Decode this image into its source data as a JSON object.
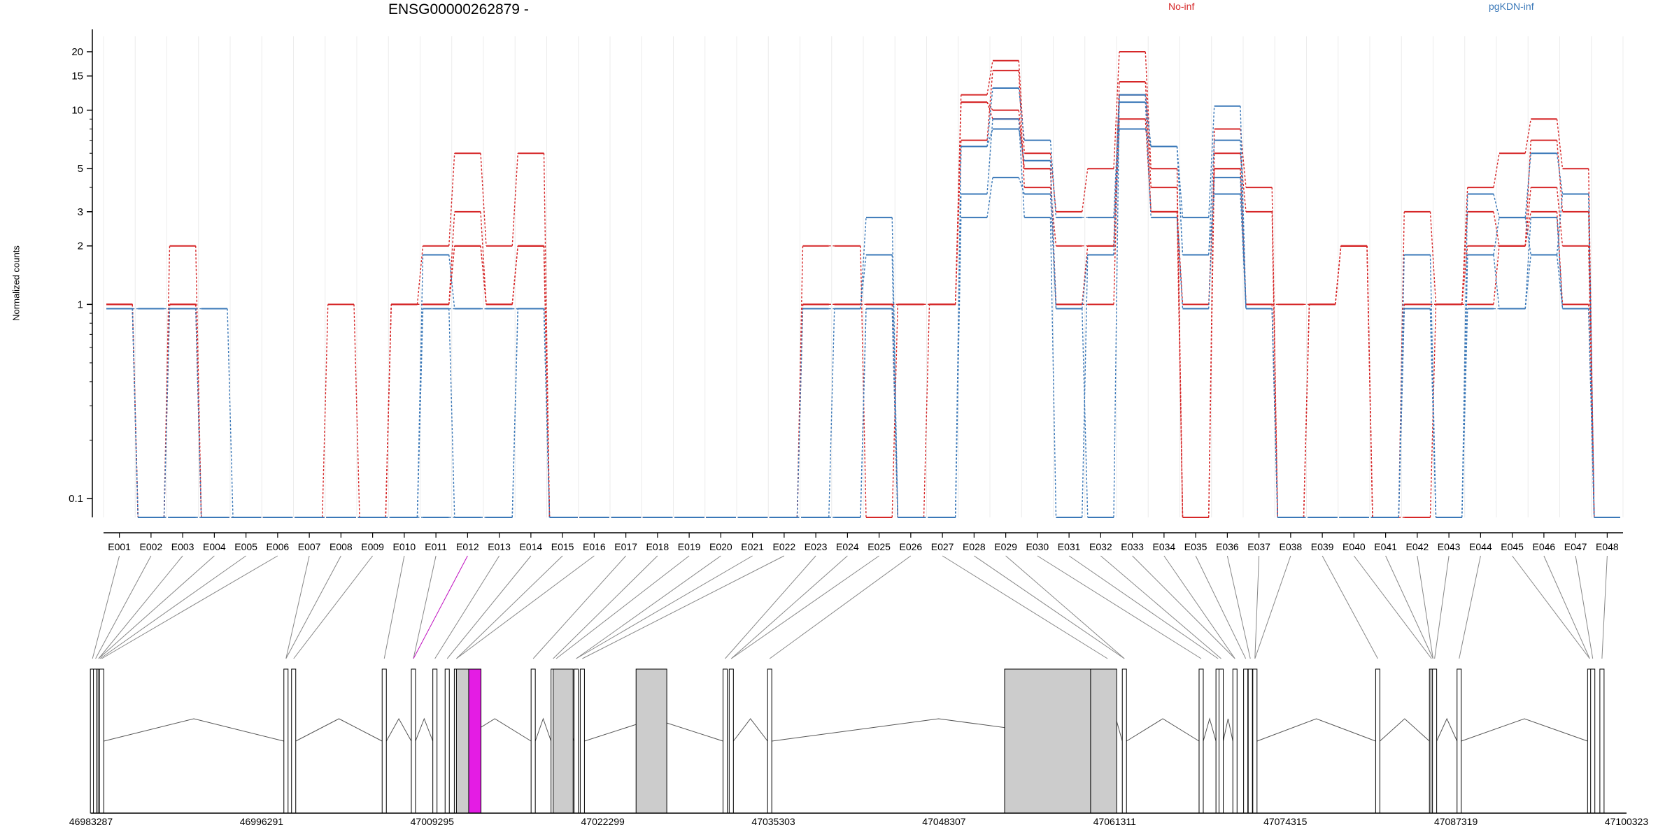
{
  "header": {
    "title": "ENSG00000262879 -",
    "legend": [
      {
        "label": "No-inf",
        "color": "#d62728"
      },
      {
        "label": "pgKDN-inf",
        "color": "#3a78b8"
      }
    ]
  },
  "chart_data": {
    "type": "line",
    "ylabel": "Normalized counts",
    "yscale": "log",
    "ylim": [
      0.08,
      24
    ],
    "yticks": [
      {
        "v": 0.1,
        "l": "0.1"
      },
      {
        "v": 1,
        "l": "1"
      },
      {
        "v": 2,
        "l": "2"
      },
      {
        "v": 3,
        "l": "3"
      },
      {
        "v": 5,
        "l": "5"
      },
      {
        "v": 10,
        "l": "10"
      },
      {
        "v": 15,
        "l": "15"
      },
      {
        "v": 20,
        "l": "20"
      }
    ],
    "grid": "vertical",
    "categories": [
      "E001",
      "E002",
      "E003",
      "E004",
      "E005",
      "E006",
      "E007",
      "E008",
      "E009",
      "E010",
      "E011",
      "E012",
      "E013",
      "E014",
      "E015",
      "E016",
      "E017",
      "E018",
      "E019",
      "E020",
      "E021",
      "E022",
      "E023",
      "E024",
      "E025",
      "E026",
      "E027",
      "E028",
      "E029",
      "E030",
      "E031",
      "E032",
      "E033",
      "E034",
      "E035",
      "E036",
      "E037",
      "E038",
      "E039",
      "E040",
      "E041",
      "E042",
      "E043",
      "E044",
      "E045",
      "E046",
      "E047",
      "E048"
    ],
    "highlight_category": "E012",
    "series": [
      {
        "group": "No-inf",
        "color": "#d62728",
        "values": [
          1,
          0.08,
          1,
          0.08,
          0.08,
          0.08,
          0.08,
          1,
          0.08,
          1,
          1,
          2,
          1,
          2,
          0.08,
          0.08,
          0.08,
          0.08,
          0.08,
          0.08,
          0.08,
          0.08,
          1,
          1,
          1,
          1,
          1,
          11,
          9,
          5,
          1,
          2,
          9,
          3,
          1,
          5,
          1,
          1,
          1,
          2,
          0.08,
          1,
          1,
          2,
          2,
          3,
          1,
          0.08
        ]
      },
      {
        "group": "No-inf",
        "color": "#d62728",
        "values": [
          1,
          0.08,
          2,
          0.08,
          0.08,
          0.08,
          0.08,
          0.08,
          0.08,
          1,
          2,
          6,
          2,
          6,
          0.08,
          0.08,
          0.08,
          0.08,
          0.08,
          0.08,
          0.08,
          0.08,
          2,
          2,
          0.08,
          1,
          1,
          12,
          18,
          6,
          3,
          5,
          20,
          5,
          0.08,
          8,
          4,
          0.08,
          1,
          2,
          0.08,
          3,
          1,
          4,
          6,
          9,
          5,
          0.08
        ]
      },
      {
        "group": "No-inf",
        "color": "#d62728",
        "values": [
          1,
          0.08,
          1,
          0.08,
          0.08,
          0.08,
          0.08,
          0.08,
          0.08,
          1,
          1,
          3,
          1,
          2,
          0.08,
          0.08,
          0.08,
          0.08,
          0.08,
          0.08,
          0.08,
          0.08,
          1,
          1,
          1,
          0.08,
          1,
          7,
          16,
          4,
          2,
          2,
          14,
          4,
          0.08,
          6,
          3,
          0.08,
          1,
          2,
          0.08,
          0.08,
          1,
          3,
          2,
          7,
          3,
          0.08
        ]
      },
      {
        "group": "No-inf",
        "color": "#d62728",
        "values": [
          1,
          0.08,
          1,
          0.08,
          0.08,
          0.08,
          0.08,
          0.08,
          0.08,
          1,
          1,
          2,
          1,
          2,
          0.08,
          0.08,
          0.08,
          0.08,
          0.08,
          0.08,
          0.08,
          0.08,
          1,
          1,
          1,
          1,
          1,
          11,
          10,
          5,
          1,
          1,
          12,
          3,
          0.08,
          5,
          1,
          0.08,
          1,
          2,
          0.08,
          1,
          1,
          1,
          2,
          4,
          2,
          0.08
        ]
      },
      {
        "group": "pgKDN-inf",
        "color": "#3a78b8",
        "values": [
          0.95,
          0.95,
          0.95,
          0.95,
          0.08,
          0.08,
          0.08,
          0.08,
          0.08,
          0.08,
          1.8,
          0.95,
          0.95,
          0.95,
          0.08,
          0.08,
          0.08,
          0.08,
          0.08,
          0.08,
          0.08,
          0.08,
          0.08,
          0.95,
          2.8,
          0.08,
          0.08,
          6.5,
          13,
          7,
          2.8,
          2.8,
          12,
          6.5,
          2.8,
          10.5,
          0.95,
          0.08,
          0.08,
          0.08,
          0.08,
          1.8,
          0.08,
          3.7,
          2.8,
          6,
          3.7,
          0.08
        ]
      },
      {
        "group": "pgKDN-inf",
        "color": "#3a78b8",
        "values": [
          0.95,
          0.08,
          0.08,
          0.08,
          0.08,
          0.08,
          0.08,
          0.08,
          0.08,
          0.08,
          0.95,
          0.08,
          0.08,
          0.95,
          0.08,
          0.08,
          0.08,
          0.08,
          0.08,
          0.08,
          0.08,
          0.08,
          0.08,
          0.08,
          0.95,
          0.08,
          0.08,
          3.7,
          9,
          2.8,
          0.08,
          1.8,
          8,
          6.5,
          1.8,
          7,
          0.95,
          0.08,
          0.08,
          0.08,
          0.08,
          0.95,
          0.08,
          0.95,
          0.95,
          2.8,
          0.95,
          0.08
        ]
      },
      {
        "group": "pgKDN-inf",
        "color": "#3a78b8",
        "values": [
          0.95,
          0.08,
          0.95,
          0.08,
          0.08,
          0.08,
          0.08,
          0.08,
          0.08,
          0.08,
          0.95,
          0.95,
          0.95,
          0.95,
          0.08,
          0.08,
          0.08,
          0.08,
          0.08,
          0.08,
          0.08,
          0.08,
          0.95,
          0.95,
          1.8,
          0.08,
          0.08,
          2.8,
          4.5,
          3.7,
          0.95,
          1.8,
          11,
          2.8,
          0.95,
          4.5,
          0.95,
          0.08,
          0.08,
          0.08,
          0.08,
          0.95,
          0.08,
          1.8,
          2.8,
          1.8,
          0.95,
          0.08
        ]
      },
      {
        "group": "pgKDN-inf",
        "color": "#3a78b8",
        "values": [
          0.95,
          0.08,
          0.08,
          0.08,
          0.08,
          0.08,
          0.08,
          0.08,
          0.08,
          0.08,
          0.08,
          0.08,
          0.08,
          0.95,
          0.08,
          0.08,
          0.08,
          0.08,
          0.08,
          0.08,
          0.08,
          0.08,
          0.08,
          0.08,
          0.95,
          0.08,
          0.08,
          6.5,
          8,
          5.5,
          0.95,
          0.08,
          12,
          6.5,
          1.8,
          3.7,
          0.95,
          0.08,
          0.08,
          0.08,
          0.08,
          0.95,
          0.08,
          1.8,
          0.95,
          1.8,
          3.7,
          0.08
        ]
      }
    ],
    "gene_model": {
      "coordinate_ticks": [
        "46983287",
        "46996291",
        "47009295",
        "47022299",
        "47035303",
        "47048307",
        "47061311",
        "47074315",
        "47087319",
        "47100323"
      ],
      "exon_positions": [
        0.001,
        0.003,
        0.005,
        0.006,
        0.007,
        0.127,
        0.132,
        0.191,
        0.21,
        0.224,
        0.232,
        0.238,
        0.288,
        0.301,
        0.303,
        0.316,
        0.32,
        0.413,
        0.417,
        0.442,
        0.662,
        0.673,
        0.723,
        0.734,
        0.736,
        0.745,
        0.752,
        0.755,
        0.758,
        0.838,
        0.873,
        0.874,
        0.875,
        0.891,
        0.976,
        0.978,
        0.984
      ]
    }
  }
}
